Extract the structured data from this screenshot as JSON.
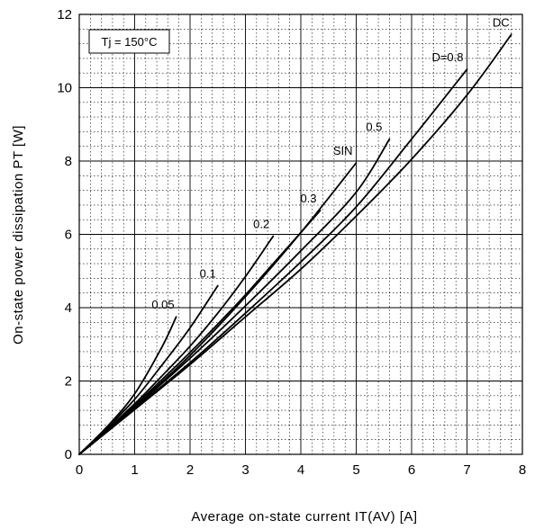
{
  "chart_data": {
    "type": "line",
    "xlabel": "Average on-state current IT(AV) [A]",
    "ylabel": "On-state power dissipation PT [W]",
    "xlim": [
      0,
      8
    ],
    "ylim": [
      0,
      12
    ],
    "x_ticks": [
      "0",
      "1",
      "2",
      "3",
      "4",
      "5",
      "6",
      "7",
      "8"
    ],
    "y_ticks": [
      "0",
      "2",
      "4",
      "6",
      "8",
      "10",
      "12"
    ],
    "grid": {
      "major": true,
      "minor": true,
      "minor_style": "dotted"
    },
    "condition_label": "Tj = 150°C",
    "series": [
      {
        "name": "0.05",
        "x": [
          0,
          0.5,
          1.0,
          1.5,
          1.75
        ],
        "y": [
          0,
          0.75,
          1.65,
          2.95,
          3.75
        ]
      },
      {
        "name": "0.1",
        "x": [
          0,
          0.5,
          1.0,
          1.5,
          2.0,
          2.5
        ],
        "y": [
          0,
          0.72,
          1.5,
          2.45,
          3.45,
          4.6
        ]
      },
      {
        "name": "0.2",
        "x": [
          0,
          0.5,
          1.0,
          1.5,
          2.0,
          2.5,
          3.0,
          3.5
        ],
        "y": [
          0,
          0.68,
          1.38,
          2.15,
          2.95,
          3.85,
          4.85,
          5.95
        ]
      },
      {
        "name": "0.3",
        "x": [
          0,
          0.5,
          1.0,
          1.5,
          2.0,
          2.5,
          3.0,
          3.5,
          4.0,
          4.35
        ],
        "y": [
          0,
          0.66,
          1.33,
          2.05,
          2.78,
          3.55,
          4.35,
          5.2,
          6.05,
          6.65
        ]
      },
      {
        "name": "SIN",
        "x": [
          0,
          1.0,
          2.0,
          3.0,
          4.0,
          5.0
        ],
        "y": [
          0,
          1.3,
          2.7,
          4.3,
          6.05,
          7.95
        ]
      },
      {
        "name": "0.5",
        "x": [
          0,
          1.0,
          2.0,
          3.0,
          4.0,
          5.0,
          5.6
        ],
        "y": [
          0,
          1.28,
          2.62,
          4.05,
          5.55,
          7.15,
          8.6
        ]
      },
      {
        "name": "D=0.8",
        "x": [
          0,
          1.0,
          2.0,
          3.0,
          4.0,
          5.0,
          6.0,
          7.0
        ],
        "y": [
          0,
          1.25,
          2.5,
          3.85,
          5.25,
          6.75,
          8.6,
          10.5
        ]
      },
      {
        "name": "DC",
        "x": [
          0,
          1.0,
          2.0,
          3.0,
          4.0,
          5.0,
          6.0,
          7.0,
          7.8
        ],
        "y": [
          0,
          1.22,
          2.45,
          3.75,
          5.05,
          6.5,
          8.05,
          9.8,
          11.45
        ]
      }
    ]
  }
}
